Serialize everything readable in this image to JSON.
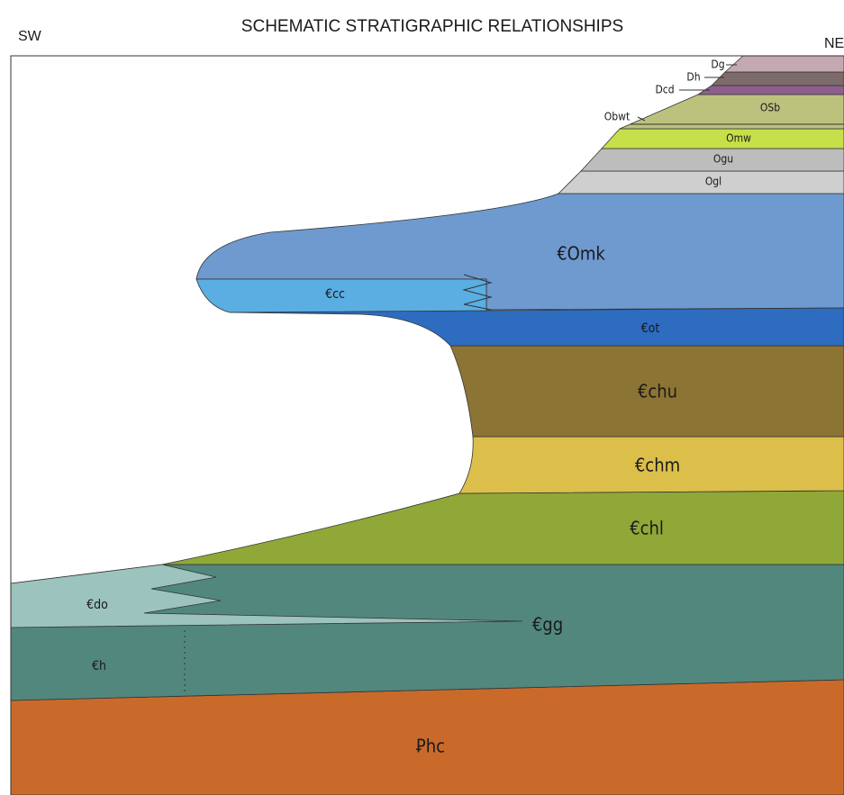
{
  "header": {
    "title": "SCHEMATIC STRATIGRAPHIC RELATIONSHIPS",
    "left": "SW",
    "right": "NE"
  },
  "units": [
    {
      "label": "Dg"
    },
    {
      "label": "Dh"
    },
    {
      "label": "Dcd"
    },
    {
      "label": "Obwt"
    },
    {
      "label": "OSb"
    },
    {
      "label": "Omw"
    },
    {
      "label": "Ogu"
    },
    {
      "label": "Ogl"
    },
    {
      "label": "€Omk"
    },
    {
      "label": "€cc"
    },
    {
      "label": "€ot"
    },
    {
      "label": "€chu"
    },
    {
      "label": "€chm"
    },
    {
      "label": "€chl"
    },
    {
      "label": "€do"
    },
    {
      "label": "€gg"
    },
    {
      "label": "€h"
    },
    {
      "label": "Ꝑhc"
    }
  ]
}
